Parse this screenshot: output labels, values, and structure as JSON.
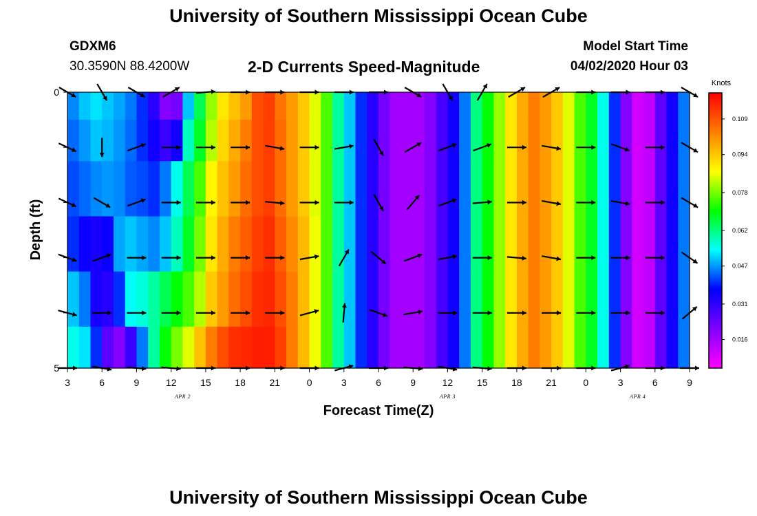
{
  "header": {
    "title": "University of Southern Mississippi Ocean Cube",
    "station_id": "GDXM6",
    "station_coords": "30.3590N 88.4200W",
    "subtitle": "2-D Currents Speed-Magnitude",
    "model_start_label": "Model Start Time",
    "model_start_value": "04/02/2020 Hour 03"
  },
  "footer": {
    "title": "University of Southern Mississippi Ocean Cube"
  },
  "chart_data": {
    "type": "heatmap",
    "title": "2-D Currents Speed-Magnitude",
    "xlabel": "Forecast Time(Z)",
    "ylabel": "Depth (ft)",
    "x_tick_labels": [
      "3",
      "6",
      "9",
      "12",
      "15",
      "18",
      "21",
      "0",
      "3",
      "6",
      "9",
      "12",
      "15",
      "18",
      "21",
      "0",
      "3",
      "6",
      "9"
    ],
    "x_range_hours": [
      0,
      54
    ],
    "y_tick_labels": [
      "0",
      "5"
    ],
    "y_range_ft": [
      0,
      5
    ],
    "date_labels": [
      {
        "text": "APR 2",
        "hour": 10
      },
      {
        "text": "APR 3",
        "hour": 33
      },
      {
        "text": "APR 4",
        "hour": 49.5
      }
    ],
    "colorbar": {
      "title": "Knots",
      "range": [
        0.004,
        0.12
      ],
      "tick_values": [
        0.016,
        0.031,
        0.047,
        0.062,
        0.078,
        0.094,
        0.109
      ],
      "tick_labels": [
        "0.016",
        "0.031",
        "0.047",
        "0.062",
        "0.078",
        "0.094",
        "0.109"
      ],
      "colors": [
        "#ff00ff",
        "#8000ff",
        "#0000ff",
        "#00ffff",
        "#00ff00",
        "#ffff00",
        "#ff8000",
        "#ff0000"
      ]
    },
    "column_hours": [
      0,
      1,
      2,
      3,
      4,
      5,
      6,
      7,
      8,
      9,
      10,
      11,
      12,
      13,
      14,
      15,
      16,
      17,
      18,
      19,
      20,
      21,
      22,
      23,
      24,
      25,
      26,
      27,
      28,
      29,
      30,
      31,
      32,
      33,
      34,
      35,
      36,
      37,
      38,
      39,
      40,
      41,
      42,
      43,
      44,
      45,
      46,
      47,
      48,
      49,
      50,
      51,
      52,
      53
    ],
    "row_depths_ft": [
      0.25,
      0.75,
      1.75,
      2.75,
      3.75,
      4.75
    ],
    "speed_knots": [
      [
        0.046,
        0.05,
        0.052,
        0.05,
        0.048,
        0.045,
        0.04,
        0.032,
        0.02,
        0.022,
        0.05,
        0.065,
        0.08,
        0.09,
        0.095,
        0.1,
        0.11,
        0.112,
        0.105,
        0.1,
        0.094,
        0.085,
        0.075,
        0.06,
        0.05,
        0.04,
        0.032,
        0.022,
        0.016,
        0.016,
        0.016,
        0.02,
        0.028,
        0.035,
        0.045,
        0.062,
        0.07,
        0.08,
        0.09,
        0.098,
        0.104,
        0.1,
        0.094,
        0.085,
        0.075,
        0.068,
        0.055,
        0.04,
        0.02,
        0.01,
        0.012,
        0.025,
        0.035,
        0.045
      ],
      [
        0.044,
        0.047,
        0.05,
        0.049,
        0.047,
        0.044,
        0.04,
        0.035,
        0.03,
        0.035,
        0.058,
        0.068,
        0.082,
        0.092,
        0.098,
        0.104,
        0.11,
        0.112,
        0.106,
        0.1,
        0.094,
        0.085,
        0.075,
        0.06,
        0.05,
        0.04,
        0.032,
        0.022,
        0.016,
        0.016,
        0.016,
        0.02,
        0.028,
        0.035,
        0.045,
        0.062,
        0.07,
        0.08,
        0.09,
        0.098,
        0.104,
        0.1,
        0.094,
        0.085,
        0.075,
        0.068,
        0.055,
        0.04,
        0.02,
        0.01,
        0.012,
        0.025,
        0.035,
        0.045
      ],
      [
        0.042,
        0.044,
        0.046,
        0.047,
        0.046,
        0.043,
        0.042,
        0.04,
        0.045,
        0.055,
        0.065,
        0.075,
        0.088,
        0.095,
        0.1,
        0.106,
        0.11,
        0.112,
        0.106,
        0.1,
        0.094,
        0.085,
        0.075,
        0.06,
        0.05,
        0.04,
        0.032,
        0.022,
        0.016,
        0.016,
        0.016,
        0.02,
        0.028,
        0.035,
        0.045,
        0.062,
        0.07,
        0.08,
        0.09,
        0.098,
        0.104,
        0.1,
        0.094,
        0.085,
        0.075,
        0.068,
        0.055,
        0.04,
        0.02,
        0.01,
        0.012,
        0.025,
        0.035,
        0.045
      ],
      [
        0.04,
        0.036,
        0.034,
        0.036,
        0.048,
        0.05,
        0.048,
        0.046,
        0.05,
        0.058,
        0.068,
        0.078,
        0.09,
        0.098,
        0.104,
        0.108,
        0.112,
        0.114,
        0.108,
        0.102,
        0.096,
        0.086,
        0.075,
        0.06,
        0.05,
        0.04,
        0.032,
        0.022,
        0.016,
        0.016,
        0.016,
        0.02,
        0.028,
        0.035,
        0.045,
        0.062,
        0.07,
        0.08,
        0.09,
        0.098,
        0.104,
        0.1,
        0.094,
        0.085,
        0.075,
        0.068,
        0.055,
        0.04,
        0.02,
        0.01,
        0.012,
        0.025,
        0.035,
        0.045
      ],
      [
        0.05,
        0.045,
        0.034,
        0.032,
        0.04,
        0.054,
        0.056,
        0.06,
        0.065,
        0.07,
        0.075,
        0.082,
        0.094,
        0.1,
        0.106,
        0.11,
        0.114,
        0.115,
        0.11,
        0.104,
        0.096,
        0.086,
        0.075,
        0.06,
        0.05,
        0.04,
        0.032,
        0.022,
        0.016,
        0.016,
        0.016,
        0.02,
        0.028,
        0.035,
        0.045,
        0.062,
        0.07,
        0.08,
        0.09,
        0.098,
        0.104,
        0.1,
        0.094,
        0.085,
        0.075,
        0.068,
        0.055,
        0.04,
        0.02,
        0.01,
        0.012,
        0.025,
        0.035,
        0.045
      ],
      [
        0.055,
        0.052,
        0.04,
        0.025,
        0.02,
        0.03,
        0.045,
        0.06,
        0.07,
        0.078,
        0.085,
        0.095,
        0.104,
        0.11,
        0.114,
        0.115,
        0.116,
        0.116,
        0.112,
        0.104,
        0.096,
        0.086,
        0.075,
        0.06,
        0.05,
        0.04,
        0.032,
        0.022,
        0.016,
        0.016,
        0.016,
        0.02,
        0.028,
        0.035,
        0.045,
        0.062,
        0.07,
        0.08,
        0.09,
        0.098,
        0.104,
        0.1,
        0.094,
        0.085,
        0.075,
        0.068,
        0.055,
        0.04,
        0.02,
        0.01,
        0.012,
        0.025,
        0.035,
        0.045
      ]
    ],
    "arrow_hours": [
      0,
      3,
      6,
      9,
      12,
      15,
      18,
      21,
      24,
      27,
      30,
      33,
      36,
      39,
      42,
      45,
      48,
      51,
      54
    ],
    "arrow_depths_ft": [
      0,
      1,
      2,
      3,
      4,
      5
    ],
    "arrow_directions_deg": [
      [
        30,
        60,
        30,
        330,
        355,
        0,
        0,
        0,
        0,
        0,
        30,
        60,
        300,
        330,
        330,
        0,
        0,
        0,
        30
      ],
      [
        25,
        90,
        340,
        0,
        0,
        0,
        10,
        0,
        350,
        60,
        330,
        340,
        340,
        0,
        10,
        0,
        20,
        0,
        30
      ],
      [
        25,
        30,
        340,
        0,
        0,
        0,
        5,
        0,
        0,
        60,
        310,
        340,
        355,
        0,
        10,
        0,
        10,
        0,
        30
      ],
      [
        20,
        340,
        0,
        0,
        0,
        0,
        0,
        350,
        300,
        40,
        340,
        350,
        0,
        5,
        10,
        0,
        0,
        0,
        35
      ],
      [
        15,
        0,
        0,
        0,
        0,
        0,
        0,
        345,
        275,
        20,
        350,
        0,
        0,
        0,
        0,
        0,
        0,
        0,
        320
      ],
      [
        0,
        10,
        5,
        5,
        0,
        0,
        0,
        0,
        345,
        0,
        5,
        10,
        5,
        0,
        0,
        0,
        345,
        0,
        0
      ]
    ]
  }
}
